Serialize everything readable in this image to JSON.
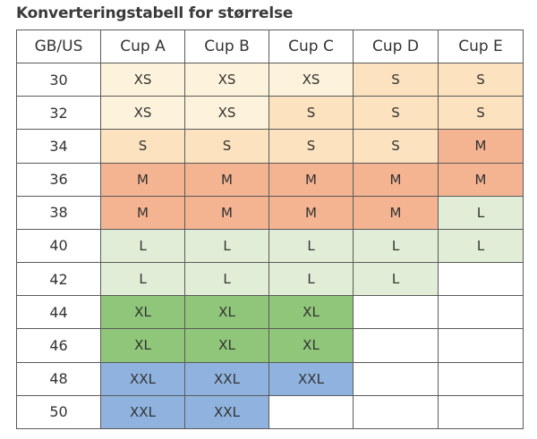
{
  "title": "Konverteringstabell for størrelse",
  "colors": {
    "XS": "#fdf3dc",
    "S": "#fce2bf",
    "M": "#f4b391",
    "L": "#e1edd7",
    "XL": "#8fc679",
    "XXL": "#8fb3de",
    "empty": "#ffffff"
  },
  "headers": [
    "GB/US",
    "Cup A",
    "Cup B",
    "Cup C",
    "Cup D",
    "Cup E"
  ],
  "rows": [
    {
      "band": "30",
      "sizes": [
        "XS",
        "XS",
        "XS",
        "S",
        "S"
      ]
    },
    {
      "band": "32",
      "sizes": [
        "XS",
        "XS",
        "S",
        "S",
        "S"
      ]
    },
    {
      "band": "34",
      "sizes": [
        "S",
        "S",
        "S",
        "S",
        "M"
      ]
    },
    {
      "band": "36",
      "sizes": [
        "M",
        "M",
        "M",
        "M",
        "M"
      ]
    },
    {
      "band": "38",
      "sizes": [
        "M",
        "M",
        "M",
        "M",
        "L"
      ]
    },
    {
      "band": "40",
      "sizes": [
        "L",
        "L",
        "L",
        "L",
        "L"
      ]
    },
    {
      "band": "42",
      "sizes": [
        "L",
        "L",
        "L",
        "L",
        ""
      ]
    },
    {
      "band": "44",
      "sizes": [
        "XL",
        "XL",
        "XL",
        "",
        ""
      ]
    },
    {
      "band": "46",
      "sizes": [
        "XL",
        "XL",
        "XL",
        "",
        ""
      ]
    },
    {
      "band": "48",
      "sizes": [
        "XXL",
        "XXL",
        "XXL",
        "",
        ""
      ]
    },
    {
      "band": "50",
      "sizes": [
        "XXL",
        "XXL",
        "",
        "",
        ""
      ]
    }
  ]
}
